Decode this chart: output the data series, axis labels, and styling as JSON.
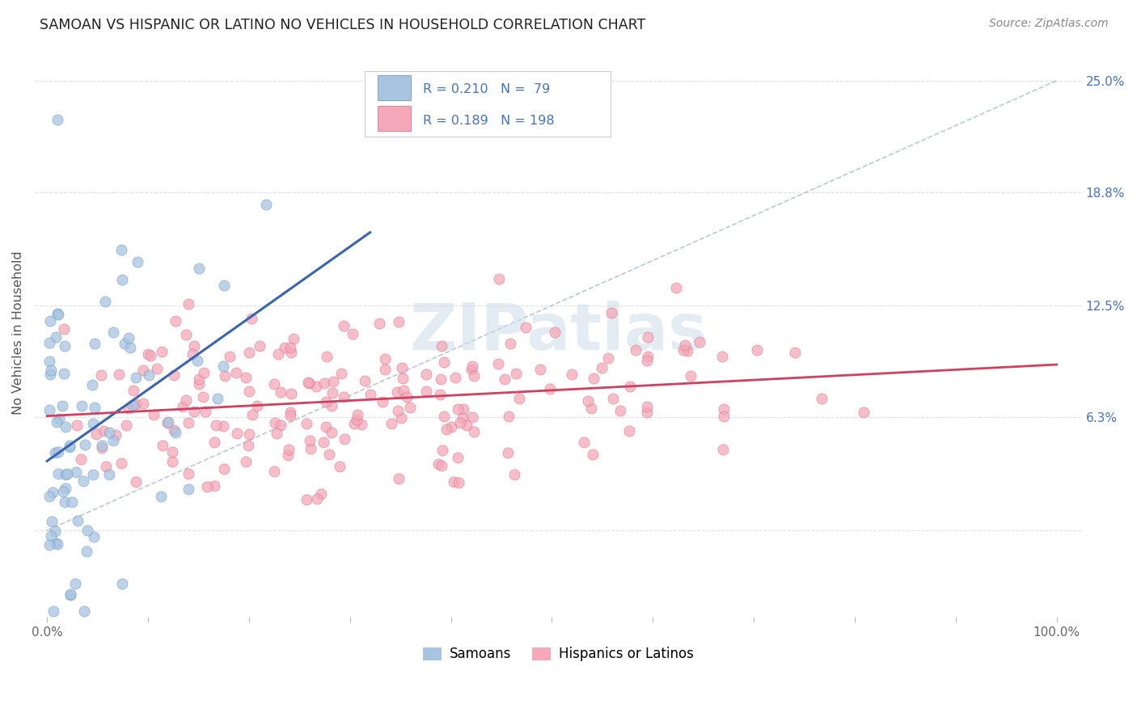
{
  "title": "SAMOAN VS HISPANIC OR LATINO NO VEHICLES IN HOUSEHOLD CORRELATION CHART",
  "source": "Source: ZipAtlas.com",
  "ylabel": "No Vehicles in Household",
  "R_samoan": 0.21,
  "N_samoan": 79,
  "R_hispanic": 0.189,
  "N_hispanic": 198,
  "color_samoan_fill": "#a8c4e0",
  "color_samoan_edge": "#5b8fc9",
  "color_hispanic_fill": "#f4a8b8",
  "color_hispanic_edge": "#e06080",
  "color_samoan_line": "#3a65b0",
  "color_hispanic_line": "#d04060",
  "color_diagonal": "#a0b8c8",
  "color_grid": "#cccccc",
  "watermark_color": "#ccdde8",
  "background_color": "#ffffff",
  "legend_text_color": "#4472c4",
  "ytick_color": "#4472c4",
  "axis_label_color": "#555555",
  "title_color": "#222222",
  "source_color": "#888888",
  "tick_label_color": "#666666"
}
